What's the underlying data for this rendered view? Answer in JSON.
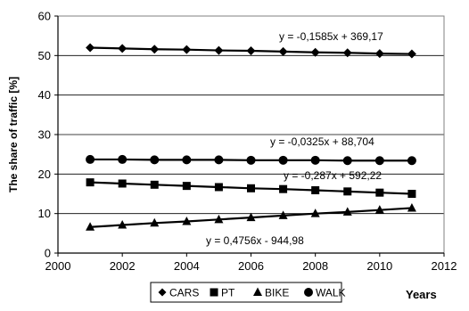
{
  "chart_data": {
    "type": "line",
    "xlabel": "Years",
    "ylabel": "The share of traffic [%]",
    "xlim": [
      2000,
      2012
    ],
    "ylim": [
      0,
      60
    ],
    "xticks": [
      2000,
      2002,
      2004,
      2006,
      2008,
      2010,
      2012
    ],
    "yticks": [
      0,
      10,
      20,
      30,
      40,
      50,
      60
    ],
    "xtick_labels": [
      "2000",
      "2002",
      "2004",
      "2006",
      "2008",
      "2010",
      "2012"
    ],
    "ytick_labels": [
      "0",
      "10",
      "20",
      "30",
      "40",
      "50",
      "60"
    ],
    "grid": true,
    "legend_position": "bottom",
    "x": [
      2001,
      2002,
      2003,
      2004,
      2005,
      2006,
      2007,
      2008,
      2009,
      2010,
      2011
    ],
    "series": [
      {
        "name": "CARS",
        "marker": "diamond",
        "values": [
          52.0,
          51.8,
          51.6,
          51.5,
          51.3,
          51.2,
          51.0,
          50.8,
          50.7,
          50.5,
          50.4
        ]
      },
      {
        "name": "PT",
        "marker": "square",
        "values": [
          17.9,
          17.6,
          17.3,
          17.0,
          16.7,
          16.4,
          16.2,
          15.9,
          15.6,
          15.3,
          15.0
        ]
      },
      {
        "name": "BIKE",
        "marker": "triangle",
        "values": [
          6.6,
          7.1,
          7.6,
          8.0,
          8.5,
          9.0,
          9.5,
          10.0,
          10.4,
          10.9,
          11.4
        ]
      },
      {
        "name": "WALK",
        "marker": "circle",
        "values": [
          23.7,
          23.7,
          23.6,
          23.6,
          23.6,
          23.5,
          23.5,
          23.5,
          23.4,
          23.4,
          23.4
        ]
      }
    ],
    "trendlines": [
      {
        "series": "CARS",
        "label": "y = -0,1585x + 369,17"
      },
      {
        "series": "WALK",
        "label": "y = -0,0325x + 88,704"
      },
      {
        "series": "PT",
        "label": "y = -0,287x + 592,22"
      },
      {
        "series": "BIKE",
        "label": "y = 0,4756x - 944,98"
      }
    ]
  }
}
